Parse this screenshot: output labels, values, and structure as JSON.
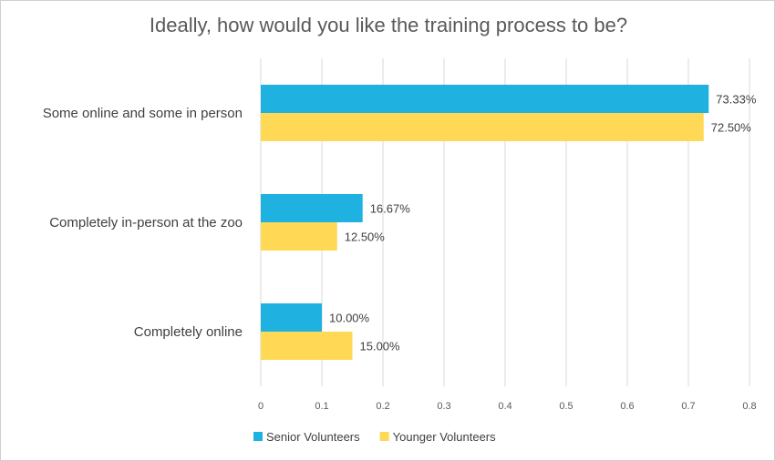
{
  "chart_data": {
    "type": "bar",
    "orientation": "horizontal",
    "title": "Ideally, how would you like the training process to be?",
    "categories": [
      "Some online and some in person",
      "Completely in-person at the zoo",
      "Completely online"
    ],
    "series": [
      {
        "name": "Senior Volunteers",
        "color": "#1FB2E0",
        "values": [
          0.7333,
          0.1667,
          0.1
        ],
        "labels": [
          "73.33%",
          "16.67%",
          "10.00%"
        ]
      },
      {
        "name": "Younger Volunteers",
        "color": "#FFD955",
        "values": [
          0.725,
          0.125,
          0.15
        ],
        "labels": [
          "72.50%",
          "12.50%",
          "15.00%"
        ]
      }
    ],
    "xlim": [
      0,
      0.8
    ],
    "xticks": [
      "0",
      "0.1",
      "0.2",
      "0.3",
      "0.4",
      "0.5",
      "0.6",
      "0.7",
      "0.8"
    ],
    "grid": "vertical",
    "legend_position": "bottom-left"
  }
}
